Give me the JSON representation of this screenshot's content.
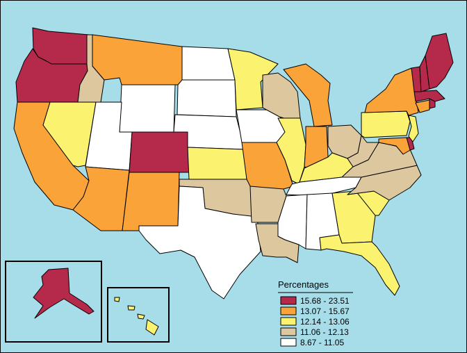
{
  "legend": {
    "title": "Percentages",
    "items": [
      {
        "label": "15.68 - 23.51",
        "color": "#b5294b"
      },
      {
        "label": "13.07 - 15.67",
        "color": "#f9a339"
      },
      {
        "label": "12.14 - 13.06",
        "color": "#fbf26f"
      },
      {
        "label": "11.06 - 12.13",
        "color": "#ddc79f"
      },
      {
        "label": "8.67 - 11.05",
        "color": "#ffffff"
      }
    ]
  },
  "states": {
    "WA": 0,
    "OR": 0,
    "CO": 0,
    "ME": 0,
    "NH": 0,
    "VT": 0,
    "MA": 0,
    "RI": 0,
    "DE": 0,
    "AK": 0,
    "MT": 1,
    "CA": 1,
    "AZ": 1,
    "NM": 1,
    "MO": 1,
    "MI": 1,
    "IN": 1,
    "NY": 1,
    "CT": 1,
    "MD": 1,
    "NV": 2,
    "MN": 2,
    "KS": 2,
    "IL": 2,
    "KY": 2,
    "PA": 2,
    "GA": 2,
    "SC": 2,
    "FL": 2,
    "NJ": 2,
    "HI": 2,
    "ID": 3,
    "OK": 3,
    "AR": 3,
    "LA": 3,
    "WI": 3,
    "OH": 3,
    "WV": 3,
    "VA": 3,
    "NC": 3,
    "WY": 4,
    "UT": 4,
    "ND": 4,
    "SD": 4,
    "NE": 4,
    "IA": 4,
    "TX": 4,
    "MS": 4,
    "AL": 4,
    "TN": 4
  }
}
